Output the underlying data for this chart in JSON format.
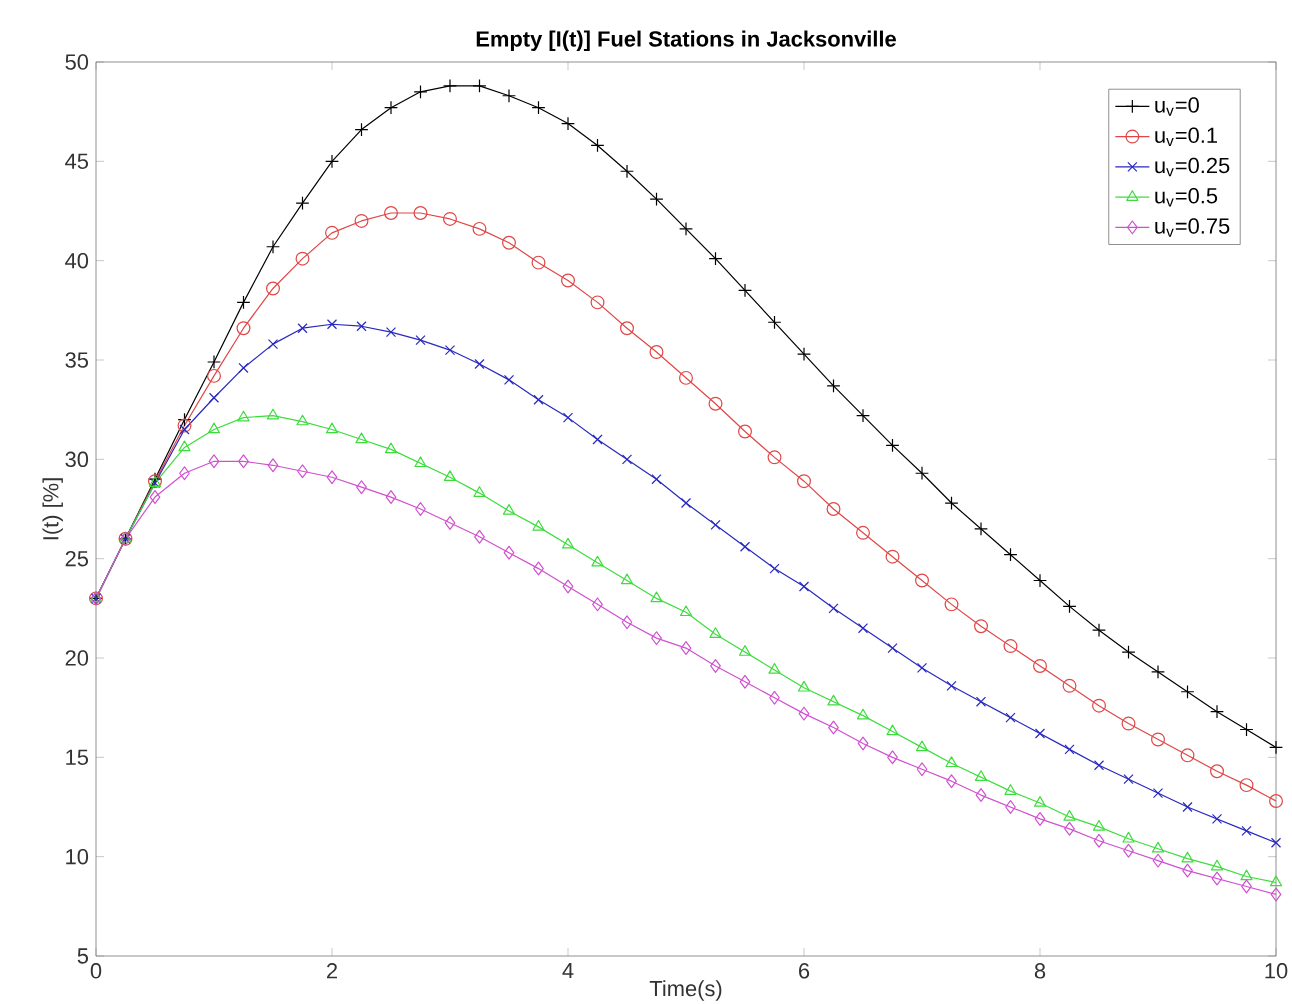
{
  "chart_data": {
    "type": "line",
    "title": "Empty [I(t)] Fuel Stations in Jacksonville",
    "xlabel": "Time(s)",
    "ylabel": "I(t) [%]",
    "x": [
      0,
      0.25,
      0.5,
      0.75,
      1,
      1.25,
      1.5,
      1.75,
      2,
      2.25,
      2.5,
      2.75,
      3,
      3.25,
      3.5,
      3.75,
      4,
      4.25,
      4.5,
      4.75,
      5,
      5.25,
      5.5,
      5.75,
      6,
      6.25,
      6.5,
      6.75,
      7,
      7.25,
      7.5,
      7.75,
      8,
      8.25,
      8.5,
      8.75,
      9,
      9.25,
      9.5,
      9.75,
      10
    ],
    "xlim": [
      0,
      10
    ],
    "xticks": [
      0,
      2,
      4,
      6,
      8,
      10
    ],
    "ylim": [
      5,
      50
    ],
    "yticks": [
      5,
      10,
      15,
      20,
      25,
      30,
      35,
      40,
      45,
      50
    ],
    "grid": false,
    "legend": "top right",
    "line_style": "solid",
    "series": [
      {
        "name": "u$_{v}$=0",
        "color": "#000000",
        "marker": "plus",
        "values": [
          23,
          26,
          29,
          32,
          34.9,
          37.9,
          40.7,
          42.9,
          45,
          46.6,
          47.7,
          48.5,
          48.8,
          48.8,
          48.3,
          47.7,
          46.9,
          45.8,
          44.5,
          43.1,
          41.6,
          40.1,
          38.5,
          36.9,
          35.3,
          33.7,
          32.2,
          30.7,
          29.3,
          27.8,
          26.5,
          25.2,
          23.9,
          22.6,
          21.4,
          20.3,
          19.3,
          18.3,
          17.3,
          16.4,
          15.5
        ]
      },
      {
        "name": "u$_{v}$=0.1",
        "color": "#e04646",
        "marker": "circle",
        "values": [
          23,
          26,
          28.9,
          31.7,
          34.2,
          36.6,
          38.6,
          40.1,
          41.4,
          42,
          42.4,
          42.4,
          42.1,
          41.6,
          40.9,
          39.9,
          39,
          37.9,
          36.6,
          35.4,
          34.1,
          32.8,
          31.4,
          30.1,
          28.9,
          27.5,
          26.3,
          25.1,
          23.9,
          22.7,
          21.6,
          20.6,
          19.6,
          18.6,
          17.6,
          16.7,
          15.9,
          15.1,
          14.3,
          13.6,
          12.8
        ]
      },
      {
        "name": "u$_{v}$=0.25",
        "color": "#2828c0",
        "marker": "x",
        "values": [
          23,
          26,
          28.8,
          31.5,
          33.1,
          34.6,
          35.8,
          36.6,
          36.8,
          36.7,
          36.4,
          36,
          35.5,
          34.8,
          34,
          33,
          32.1,
          31,
          30,
          29,
          27.8,
          26.7,
          25.6,
          24.5,
          23.6,
          22.5,
          21.5,
          20.5,
          19.5,
          18.6,
          17.8,
          17,
          16.2,
          15.4,
          14.6,
          13.9,
          13.2,
          12.5,
          11.9,
          11.3,
          10.7
        ]
      },
      {
        "name": "u$_{v}$=0.5",
        "color": "#3ddc3d",
        "marker": "triangle",
        "values": [
          23,
          26,
          28.8,
          30.6,
          31.5,
          32.1,
          32.2,
          31.9,
          31.5,
          31,
          30.5,
          29.8,
          29.1,
          28.3,
          27.4,
          26.6,
          25.7,
          24.8,
          23.9,
          23,
          22.3,
          21.2,
          20.3,
          19.4,
          18.5,
          17.8,
          17.1,
          16.3,
          15.5,
          14.7,
          14,
          13.3,
          12.7,
          12,
          11.5,
          10.9,
          10.4,
          9.9,
          9.5,
          9,
          8.7
        ]
      },
      {
        "name": "u$_{v}$=0.75",
        "color": "#d050d0",
        "marker": "diamond",
        "values": [
          23,
          26,
          28.1,
          29.3,
          29.9,
          29.9,
          29.7,
          29.4,
          29.1,
          28.6,
          28.1,
          27.5,
          26.8,
          26.1,
          25.3,
          24.5,
          23.6,
          22.7,
          21.8,
          21,
          20.5,
          19.6,
          18.8,
          18,
          17.2,
          16.5,
          15.7,
          15,
          14.4,
          13.8,
          13.1,
          12.5,
          11.9,
          11.4,
          10.8,
          10.3,
          9.8,
          9.3,
          8.9,
          8.5,
          8.1
        ]
      }
    ]
  }
}
